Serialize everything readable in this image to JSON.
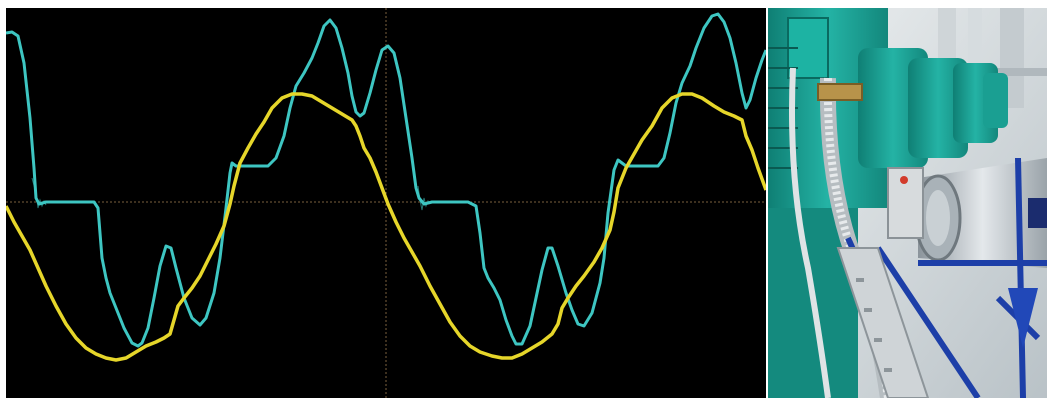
{
  "image": {
    "left_panel": "oscilloscope-screen",
    "right_panel": "industrial-motors-photo"
  },
  "oscilloscope": {
    "background_color": "#000000",
    "gridline_color": "#7a5f3e",
    "traces": [
      {
        "name": "",
        "color": "#3ec6c2"
      },
      {
        "name": "",
        "color": "#e6d62a"
      }
    ]
  },
  "photo": {
    "motor_color": "#1fa99b",
    "pipe_color": "#c9cfd4",
    "frame_color": "#1d3fa8"
  }
}
